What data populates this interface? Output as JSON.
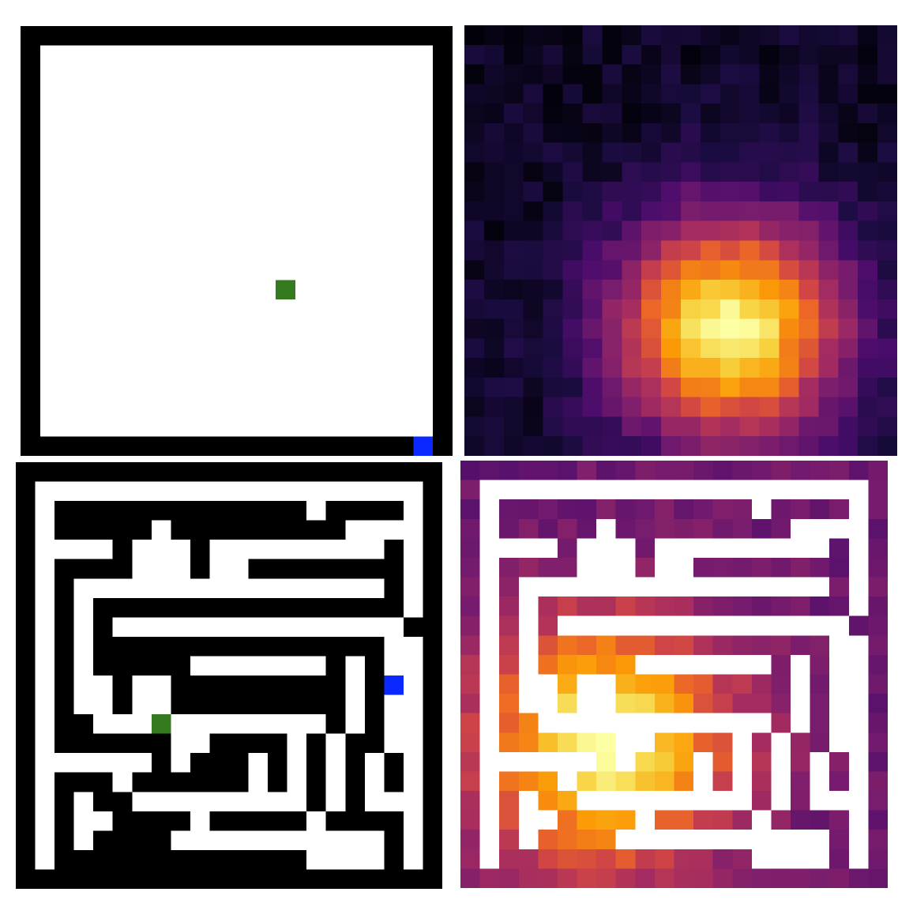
{
  "panels": [
    {
      "id": "empty-room-grid",
      "kind": "grid",
      "size": 22,
      "layout": "open-room",
      "agent": {
        "row": 13,
        "col": 13
      },
      "goal": {
        "row": 21,
        "col": 20
      }
    },
    {
      "id": "empty-room-heatmap",
      "kind": "heatmap",
      "size": 22,
      "hotspot": {
        "row": 15,
        "col": 13
      },
      "spread": 4.0
    },
    {
      "id": "maze-grid",
      "kind": "grid",
      "size": 22,
      "layout": "maze",
      "agent": {
        "row": 13,
        "col": 7
      },
      "goal": {
        "row": 11,
        "col": 19
      }
    },
    {
      "id": "maze-heatmap",
      "kind": "heatmap",
      "size": 22,
      "hotspot": {
        "row": 14,
        "col": 7
      },
      "spread": 4.5,
      "masked_by": "maze"
    }
  ],
  "colors": {
    "wall": "#000000",
    "floor": "#ffffff",
    "agent": "#347a1e",
    "goal": "#0a28ff",
    "colormap": [
      "#000004",
      "#1b0c41",
      "#4a0c6b",
      "#781c6d",
      "#a52c60",
      "#cf4446",
      "#ed6925",
      "#fb9b06",
      "#f7d13d",
      "#fcffa4"
    ]
  }
}
